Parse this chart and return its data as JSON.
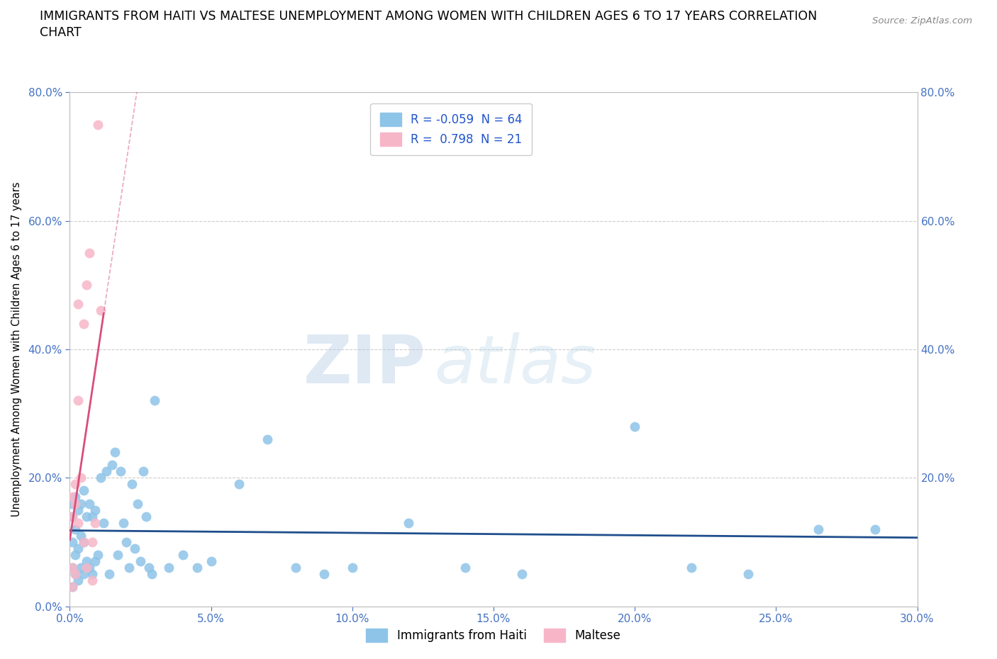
{
  "title_line1": "IMMIGRANTS FROM HAITI VS MALTESE UNEMPLOYMENT AMONG WOMEN WITH CHILDREN AGES 6 TO 17 YEARS CORRELATION",
  "title_line2": "CHART",
  "source": "Source: ZipAtlas.com",
  "ylabel": "Unemployment Among Women with Children Ages 6 to 17 years",
  "xlim": [
    0.0,
    0.3
  ],
  "ylim": [
    0.0,
    0.8
  ],
  "xticks": [
    0.0,
    0.05,
    0.1,
    0.15,
    0.2,
    0.25,
    0.3
  ],
  "yticks": [
    0.0,
    0.2,
    0.4,
    0.6,
    0.8
  ],
  "xticklabels": [
    "0.0%",
    "5.0%",
    "10.0%",
    "15.0%",
    "20.0%",
    "25.0%",
    "30.0%"
  ],
  "yticklabels": [
    "0.0%",
    "20.0%",
    "40.0%",
    "60.0%",
    "80.0%"
  ],
  "blue_color": "#8ec4e8",
  "pink_color": "#f7b6c8",
  "blue_line_color": "#1f4e8c",
  "pink_line_color": "#d94f7a",
  "blue_R": -0.059,
  "blue_N": 64,
  "pink_R": 0.798,
  "pink_N": 21,
  "watermark_zip": "ZIP",
  "watermark_atlas": "atlas",
  "background_color": "#ffffff",
  "grid_color": "#cccccc",
  "axis_color": "#bbbbbb",
  "tick_color": "#4472c4",
  "blue_x": [
    0.001,
    0.001,
    0.001,
    0.001,
    0.001,
    0.002,
    0.002,
    0.002,
    0.002,
    0.003,
    0.003,
    0.003,
    0.004,
    0.004,
    0.004,
    0.005,
    0.005,
    0.005,
    0.006,
    0.006,
    0.007,
    0.007,
    0.008,
    0.008,
    0.009,
    0.009,
    0.01,
    0.011,
    0.012,
    0.013,
    0.014,
    0.015,
    0.016,
    0.017,
    0.018,
    0.019,
    0.02,
    0.021,
    0.022,
    0.023,
    0.024,
    0.025,
    0.026,
    0.027,
    0.028,
    0.029,
    0.03,
    0.035,
    0.04,
    0.045,
    0.05,
    0.06,
    0.07,
    0.08,
    0.09,
    0.1,
    0.12,
    0.14,
    0.16,
    0.2,
    0.22,
    0.24,
    0.265,
    0.285
  ],
  "blue_y": [
    0.03,
    0.06,
    0.1,
    0.14,
    0.16,
    0.05,
    0.08,
    0.12,
    0.17,
    0.04,
    0.09,
    0.15,
    0.06,
    0.11,
    0.16,
    0.05,
    0.1,
    0.18,
    0.07,
    0.14,
    0.06,
    0.16,
    0.05,
    0.14,
    0.07,
    0.15,
    0.08,
    0.2,
    0.13,
    0.21,
    0.05,
    0.22,
    0.24,
    0.08,
    0.21,
    0.13,
    0.1,
    0.06,
    0.19,
    0.09,
    0.16,
    0.07,
    0.21,
    0.14,
    0.06,
    0.05,
    0.32,
    0.06,
    0.08,
    0.06,
    0.07,
    0.19,
    0.26,
    0.06,
    0.05,
    0.06,
    0.13,
    0.06,
    0.05,
    0.28,
    0.06,
    0.05,
    0.12,
    0.12
  ],
  "pink_x": [
    0.001,
    0.001,
    0.001,
    0.001,
    0.002,
    0.002,
    0.002,
    0.003,
    0.003,
    0.003,
    0.004,
    0.005,
    0.005,
    0.006,
    0.006,
    0.007,
    0.008,
    0.008,
    0.009,
    0.01,
    0.011
  ],
  "pink_y": [
    0.03,
    0.06,
    0.14,
    0.17,
    0.05,
    0.16,
    0.19,
    0.13,
    0.32,
    0.47,
    0.2,
    0.1,
    0.44,
    0.06,
    0.5,
    0.55,
    0.1,
    0.04,
    0.13,
    0.75,
    0.46
  ]
}
